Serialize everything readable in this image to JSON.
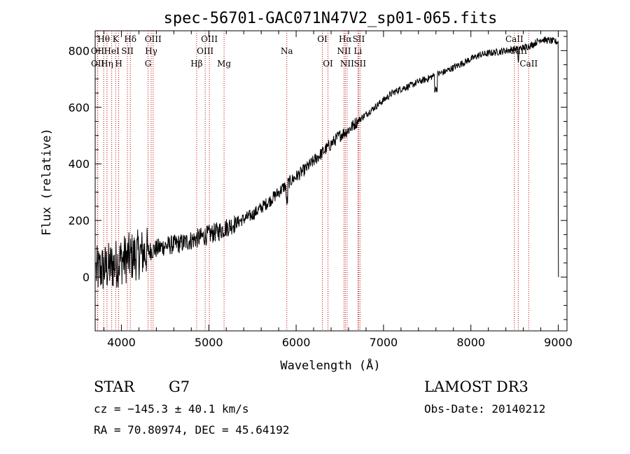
{
  "chart_data": {
    "type": "line",
    "title": "spec-56701-GAC071N47V2_sp01-065.fits",
    "xlabel": "Wavelength (Å)",
    "ylabel": "Flux (relative)",
    "xlim": [
      3700,
      9100
    ],
    "ylim": [
      -190,
      870
    ],
    "x_ticks": [
      4000,
      5000,
      6000,
      7000,
      8000,
      9000
    ],
    "y_ticks": [
      0,
      200,
      400,
      600,
      800
    ],
    "x_tick_labels": [
      "4000",
      "5000",
      "6000",
      "7000",
      "8000",
      "9000"
    ],
    "y_tick_labels": [
      "0",
      "200",
      "400",
      "600",
      "800"
    ],
    "series": [
      {
        "name": "flux",
        "x": [
          3700,
          3800,
          3900,
          4000,
          4100,
          4200,
          4300,
          4400,
          4500,
          4600,
          4700,
          4800,
          4900,
          5000,
          5100,
          5200,
          5300,
          5400,
          5500,
          5600,
          5700,
          5800,
          5900,
          6000,
          6100,
          6200,
          6300,
          6400,
          6500,
          6600,
          6700,
          6800,
          6900,
          7000,
          7100,
          7200,
          7300,
          7400,
          7500,
          7600,
          7700,
          7800,
          7900,
          8000,
          8100,
          8200,
          8300,
          8400,
          8500,
          8600,
          8700,
          8800,
          8900,
          9000
        ],
        "y": [
          20,
          30,
          40,
          60,
          70,
          80,
          90,
          100,
          110,
          115,
          120,
          130,
          140,
          150,
          160,
          175,
          190,
          205,
          220,
          245,
          270,
          300,
          330,
          355,
          380,
          410,
          440,
          470,
          500,
          520,
          550,
          575,
          600,
          625,
          650,
          665,
          675,
          690,
          700,
          715,
          725,
          740,
          755,
          770,
          785,
          790,
          795,
          800,
          805,
          810,
          820,
          840,
          835,
          830
        ]
      }
    ],
    "spectral_lines": [
      {
        "label": "Hθ",
        "x": 3797,
        "row": 0
      },
      {
        "label": "OII",
        "x": 3727,
        "row": 1
      },
      {
        "label": "OII",
        "x": 3729,
        "row": 2
      },
      {
        "label": "Hη",
        "x": 3835,
        "row": 2
      },
      {
        "label": "HeI",
        "x": 3889,
        "row": 1
      },
      {
        "label": "K",
        "x": 3934,
        "row": 0
      },
      {
        "label": "H",
        "x": 3969,
        "row": 2
      },
      {
        "label": "SII",
        "x": 4069,
        "row": 1
      },
      {
        "label": "Hδ",
        "x": 4102,
        "row": 0
      },
      {
        "label": "OIII",
        "x": 4363,
        "row": 0
      },
      {
        "label": "Hγ",
        "x": 4341,
        "row": 1
      },
      {
        "label": "G",
        "x": 4305,
        "row": 2
      },
      {
        "label": "Hβ",
        "x": 4861,
        "row": 2
      },
      {
        "label": "OIII",
        "x": 5007,
        "row": 0
      },
      {
        "label": "OIII",
        "x": 4959,
        "row": 1
      },
      {
        "label": "Mg",
        "x": 5175,
        "row": 2
      },
      {
        "label": "Na",
        "x": 5893,
        "row": 1
      },
      {
        "label": "OI",
        "x": 6300,
        "row": 0
      },
      {
        "label": "OI",
        "x": 6364,
        "row": 2
      },
      {
        "label": "Hα",
        "x": 6563,
        "row": 0
      },
      {
        "label": "NII",
        "x": 6548,
        "row": 1
      },
      {
        "label": "NII",
        "x": 6583,
        "row": 2
      },
      {
        "label": "SII",
        "x": 6716,
        "row": 0
      },
      {
        "label": "Li",
        "x": 6707,
        "row": 1
      },
      {
        "label": "SII",
        "x": 6731,
        "row": 2
      },
      {
        "label": "CaII",
        "x": 8498,
        "row": 0
      },
      {
        "label": "CaII",
        "x": 8542,
        "row": 1
      },
      {
        "label": "CaII",
        "x": 8662,
        "row": 2
      }
    ]
  },
  "info": {
    "class": "STAR",
    "subclass": "G7",
    "survey": "LAMOST DR3",
    "cz": "cz = −145.3 ± 40.1 km/s",
    "obs_date": "Obs-Date: 20140212",
    "radec": "RA =  70.80974, DEC =  45.64192"
  },
  "colors": {
    "line_marker": "#c00000",
    "spectrum": "#000000"
  }
}
